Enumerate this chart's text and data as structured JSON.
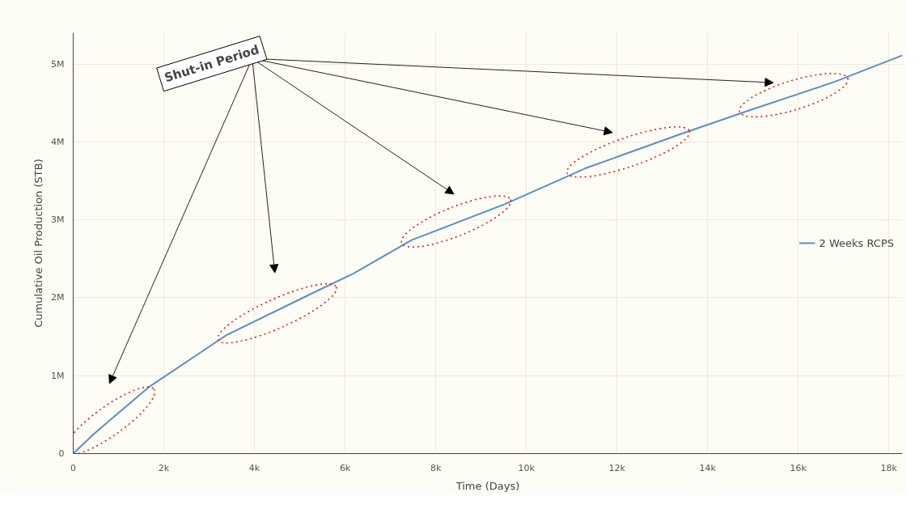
{
  "chart_data": {
    "type": "line",
    "xlabel": "Time (Days)",
    "ylabel": "Cumulative Oil Production (STB)",
    "annotations": [
      "Shut-in Period"
    ],
    "x": [
      0,
      470,
      1660,
      3380,
      5390,
      6180,
      7470,
      9520,
      11300,
      13400,
      14900,
      16800,
      18300
    ],
    "series": [
      {
        "name": "2 Weeks RCPS",
        "color": "#5b8fbf",
        "values": [
          0,
          260000,
          850000,
          1520000,
          2090000,
          2310000,
          2740000,
          3200000,
          3660000,
          4100000,
          4400000,
          4770000,
          5110000
        ]
      }
    ],
    "xlim": [
      0,
      18300
    ],
    "ylim": [
      0,
      5400000
    ],
    "xticks": [
      0,
      {
        "value": 2000,
        "label": "2k"
      },
      {
        "value": 4000,
        "label": "4k"
      },
      {
        "value": 6000,
        "label": "6k"
      },
      {
        "value": 8000,
        "label": "8k"
      },
      {
        "value": 10000,
        "label": "10k"
      },
      {
        "value": 12000,
        "label": "12k"
      },
      {
        "value": 14000,
        "label": "14k"
      },
      {
        "value": 16000,
        "label": "16k"
      },
      {
        "value": 18000,
        "label": "18k"
      }
    ],
    "yticks": [
      0,
      {
        "value": 1000000,
        "label": "1M"
      },
      {
        "value": 2000000,
        "label": "2M"
      },
      {
        "value": 3000000,
        "label": "3M"
      },
      {
        "value": 4000000,
        "label": "4M"
      },
      {
        "value": 5000000,
        "label": "5M"
      }
    ],
    "grid": true,
    "legend": "right",
    "marker": "none",
    "line_style": "solid"
  }
}
